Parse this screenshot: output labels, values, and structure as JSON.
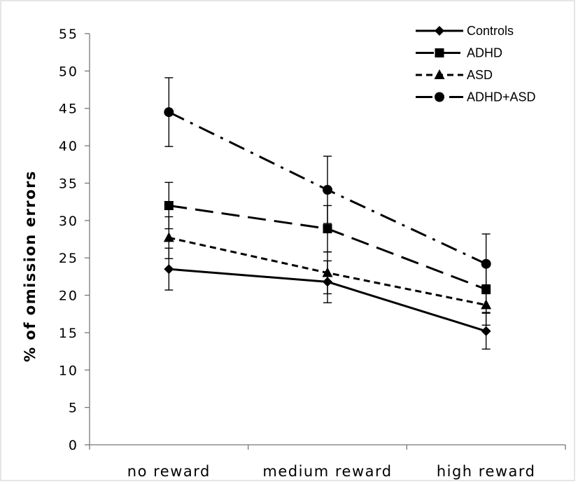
{
  "chart_data": {
    "type": "line",
    "title": "",
    "xlabel": "",
    "ylabel": "% of omission errors",
    "ylim": [
      0,
      55
    ],
    "yticks": [
      0,
      5,
      10,
      15,
      20,
      25,
      30,
      35,
      40,
      45,
      50,
      55
    ],
    "ytick_labels": [
      "0",
      "5",
      "10",
      "15",
      "20",
      "25",
      "30",
      "35",
      "40",
      "45",
      "50",
      "55"
    ],
    "categories": [
      "no reward",
      "medium reward",
      "high reward"
    ],
    "grid": false,
    "legend_position": "top-right",
    "series": [
      {
        "name": "Controls",
        "marker": "diamond",
        "dash": "solid",
        "color": "#000000",
        "values": [
          23.5,
          21.8,
          15.2
        ],
        "error_low": [
          20.7,
          19.0,
          12.8
        ],
        "error_high": [
          26.3,
          24.6,
          17.6
        ]
      },
      {
        "name": "ADHD",
        "marker": "square",
        "dash": "long-dash",
        "color": "#000000",
        "values": [
          32.0,
          28.9,
          20.8
        ],
        "error_low": [
          28.9,
          25.8,
          17.7
        ],
        "error_high": [
          35.1,
          32.0,
          23.9
        ]
      },
      {
        "name": "ASD",
        "marker": "triangle",
        "dash": "short-dash",
        "color": "#000000",
        "values": [
          27.7,
          23.0,
          18.7
        ],
        "error_low": [
          24.9,
          20.2,
          16.0
        ],
        "error_high": [
          30.5,
          25.8,
          21.4
        ]
      },
      {
        "name": "ADHD+ASD",
        "marker": "circle",
        "dash": "dash-dot",
        "color": "#000000",
        "values": [
          44.5,
          34.1,
          24.2
        ],
        "error_low": [
          39.9,
          29.6,
          20.2
        ],
        "error_high": [
          49.1,
          38.6,
          28.2
        ]
      }
    ]
  }
}
